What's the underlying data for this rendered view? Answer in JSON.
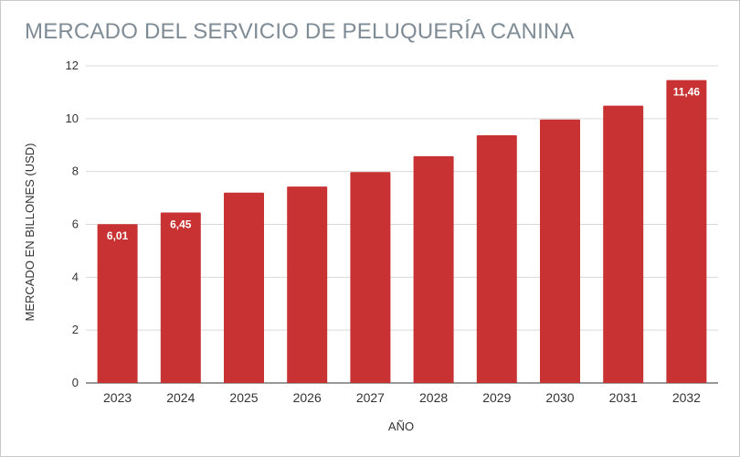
{
  "chart_data": {
    "type": "bar",
    "title": "MERCADO DEL SERVICIO DE PELUQUERÍA CANINA",
    "xlabel": "AÑO",
    "ylabel": "MERCADO EN BILLONES (USD)",
    "categories": [
      "2023",
      "2024",
      "2025",
      "2026",
      "2027",
      "2028",
      "2029",
      "2030",
      "2031",
      "2032"
    ],
    "values": [
      6.01,
      6.45,
      7.2,
      7.43,
      7.98,
      8.58,
      9.37,
      9.97,
      10.49,
      11.46
    ],
    "data_labels": [
      "6,01",
      "6,45",
      "",
      "",
      "",
      "",
      "",
      "",
      "",
      "11,46"
    ],
    "yticks": [
      "0",
      "2",
      "4",
      "6",
      "8",
      "10",
      "12"
    ],
    "ylim": [
      0,
      12
    ],
    "grid": true,
    "legend": "none",
    "bar_color": "#c83232",
    "grid_color": "#d9d9d9"
  }
}
